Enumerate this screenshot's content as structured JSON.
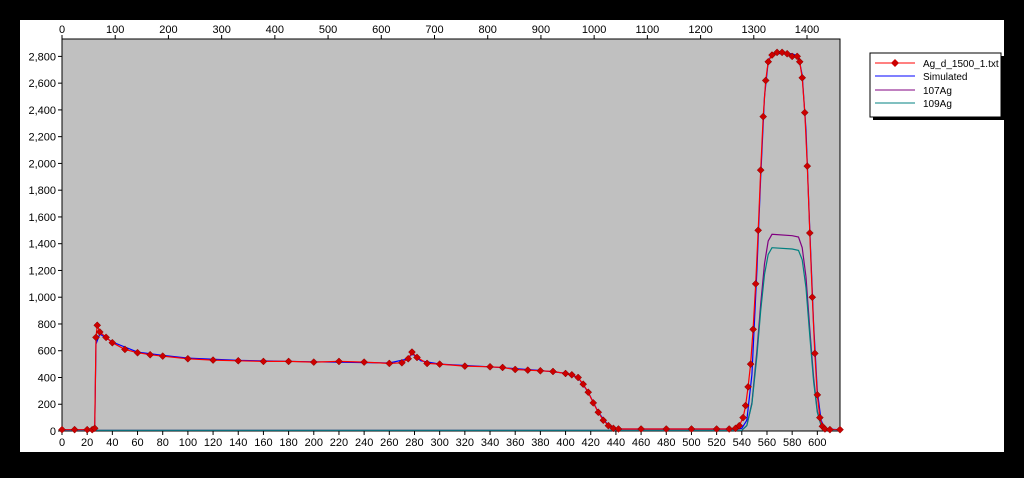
{
  "chart_data": {
    "type": "line",
    "title": "",
    "xlabel": "",
    "ylabel": "",
    "grid": false,
    "legend_position": "top-right outside",
    "plot_background": "#c0c0c0",
    "x_bottom": {
      "range": [
        0,
        618
      ],
      "ticks": [
        0,
        20,
        40,
        60,
        80,
        100,
        120,
        140,
        160,
        180,
        200,
        220,
        240,
        260,
        280,
        300,
        320,
        340,
        360,
        380,
        400,
        420,
        440,
        460,
        480,
        500,
        520,
        540,
        560,
        580,
        600
      ]
    },
    "x_top": {
      "range": [
        0,
        1462
      ],
      "ticks": [
        0,
        100,
        200,
        300,
        400,
        500,
        600,
        700,
        800,
        900,
        1000,
        1100,
        1200,
        1300,
        1400
      ]
    },
    "y": {
      "range": [
        0,
        2930
      ],
      "ticks": [
        0,
        200,
        400,
        600,
        800,
        1000,
        1200,
        1400,
        1600,
        1800,
        2000,
        2200,
        2400,
        2600,
        2800
      ],
      "tick_labels": [
        "0",
        "200",
        "400",
        "600",
        "800",
        "1,000",
        "1,200",
        "1,400",
        "1,600",
        "1,800",
        "2,000",
        "2,200",
        "2,400",
        "2,600",
        "2,800"
      ]
    },
    "series": [
      {
        "name": "Ag_d_1500_1.txt",
        "color": "#ff0000",
        "marker": "diamond",
        "marker_color": "#cc0000",
        "points": [
          [
            0,
            10
          ],
          [
            10,
            10
          ],
          [
            20,
            10
          ],
          [
            24,
            10
          ],
          [
            26,
            20
          ],
          [
            27,
            700
          ],
          [
            28,
            790
          ],
          [
            30,
            740
          ],
          [
            35,
            700
          ],
          [
            40,
            660
          ],
          [
            50,
            610
          ],
          [
            60,
            585
          ],
          [
            70,
            570
          ],
          [
            80,
            560
          ],
          [
            100,
            540
          ],
          [
            120,
            530
          ],
          [
            140,
            525
          ],
          [
            160,
            520
          ],
          [
            180,
            520
          ],
          [
            200,
            515
          ],
          [
            220,
            520
          ],
          [
            240,
            515
          ],
          [
            260,
            505
          ],
          [
            270,
            510
          ],
          [
            275,
            540
          ],
          [
            278,
            590
          ],
          [
            282,
            550
          ],
          [
            290,
            505
          ],
          [
            300,
            500
          ],
          [
            320,
            485
          ],
          [
            340,
            480
          ],
          [
            350,
            475
          ],
          [
            360,
            460
          ],
          [
            370,
            455
          ],
          [
            380,
            450
          ],
          [
            390,
            445
          ],
          [
            400,
            430
          ],
          [
            405,
            420
          ],
          [
            410,
            400
          ],
          [
            414,
            350
          ],
          [
            418,
            290
          ],
          [
            422,
            210
          ],
          [
            426,
            140
          ],
          [
            430,
            80
          ],
          [
            434,
            40
          ],
          [
            438,
            20
          ],
          [
            442,
            15
          ],
          [
            460,
            15
          ],
          [
            480,
            15
          ],
          [
            500,
            15
          ],
          [
            520,
            15
          ],
          [
            530,
            15
          ],
          [
            535,
            20
          ],
          [
            538,
            40
          ],
          [
            541,
            100
          ],
          [
            543,
            190
          ],
          [
            545,
            330
          ],
          [
            547,
            500
          ],
          [
            549,
            760
          ],
          [
            551,
            1100
          ],
          [
            553,
            1500
          ],
          [
            555,
            1950
          ],
          [
            557,
            2350
          ],
          [
            559,
            2620
          ],
          [
            561,
            2760
          ],
          [
            564,
            2810
          ],
          [
            568,
            2830
          ],
          [
            572,
            2830
          ],
          [
            576,
            2820
          ],
          [
            580,
            2800
          ],
          [
            584,
            2800
          ],
          [
            586,
            2760
          ],
          [
            588,
            2640
          ],
          [
            590,
            2380
          ],
          [
            592,
            1980
          ],
          [
            594,
            1480
          ],
          [
            596,
            1000
          ],
          [
            598,
            580
          ],
          [
            600,
            270
          ],
          [
            602,
            100
          ],
          [
            604,
            35
          ],
          [
            606,
            15
          ],
          [
            610,
            10
          ],
          [
            618,
            10
          ]
        ]
      },
      {
        "name": "Simulated",
        "color": "#0000ff",
        "points": [
          [
            0,
            10
          ],
          [
            26,
            10
          ],
          [
            27,
            650
          ],
          [
            30,
            725
          ],
          [
            40,
            665
          ],
          [
            60,
            590
          ],
          [
            80,
            565
          ],
          [
            100,
            545
          ],
          [
            140,
            528
          ],
          [
            200,
            517
          ],
          [
            260,
            508
          ],
          [
            275,
            540
          ],
          [
            278,
            580
          ],
          [
            285,
            525
          ],
          [
            300,
            500
          ],
          [
            340,
            480
          ],
          [
            380,
            452
          ],
          [
            400,
            432
          ],
          [
            410,
            400
          ],
          [
            418,
            290
          ],
          [
            426,
            140
          ],
          [
            434,
            40
          ],
          [
            442,
            15
          ],
          [
            535,
            15
          ],
          [
            540,
            20
          ],
          [
            544,
            80
          ],
          [
            548,
            420
          ],
          [
            552,
            1200
          ],
          [
            555,
            1900
          ],
          [
            558,
            2500
          ],
          [
            561,
            2760
          ],
          [
            564,
            2820
          ],
          [
            580,
            2820
          ],
          [
            585,
            2800
          ],
          [
            588,
            2660
          ],
          [
            591,
            2250
          ],
          [
            594,
            1500
          ],
          [
            597,
            800
          ],
          [
            600,
            300
          ],
          [
            603,
            80
          ],
          [
            606,
            15
          ],
          [
            618,
            10
          ]
        ]
      },
      {
        "name": "107Ag",
        "color": "#800080",
        "points": [
          [
            0,
            5
          ],
          [
            540,
            5
          ],
          [
            544,
            40
          ],
          [
            548,
            210
          ],
          [
            552,
            600
          ],
          [
            555,
            950
          ],
          [
            558,
            1250
          ],
          [
            561,
            1420
          ],
          [
            564,
            1470
          ],
          [
            580,
            1460
          ],
          [
            585,
            1450
          ],
          [
            588,
            1370
          ],
          [
            591,
            1150
          ],
          [
            594,
            760
          ],
          [
            597,
            400
          ],
          [
            600,
            150
          ],
          [
            603,
            40
          ],
          [
            606,
            5
          ],
          [
            618,
            5
          ]
        ]
      },
      {
        "name": "109Ag",
        "color": "#008080",
        "points": [
          [
            0,
            5
          ],
          [
            540,
            5
          ],
          [
            544,
            40
          ],
          [
            548,
            200
          ],
          [
            552,
            560
          ],
          [
            555,
            900
          ],
          [
            558,
            1170
          ],
          [
            561,
            1320
          ],
          [
            564,
            1370
          ],
          [
            580,
            1360
          ],
          [
            585,
            1350
          ],
          [
            588,
            1280
          ],
          [
            591,
            1070
          ],
          [
            594,
            710
          ],
          [
            597,
            370
          ],
          [
            600,
            140
          ],
          [
            603,
            40
          ],
          [
            606,
            5
          ],
          [
            618,
            5
          ]
        ]
      }
    ]
  }
}
